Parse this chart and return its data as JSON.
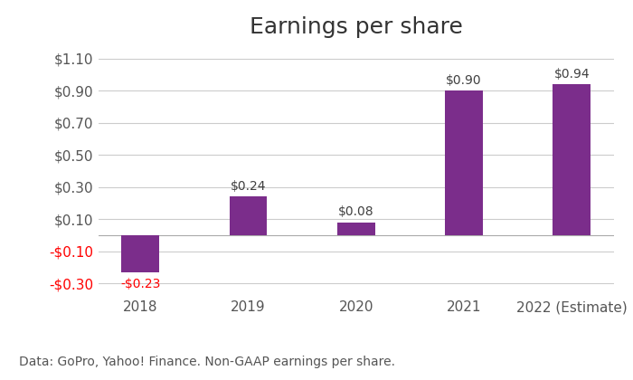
{
  "title": "Earnings per share",
  "categories": [
    "2018",
    "2019",
    "2020",
    "2021",
    "2022 (Estimate)"
  ],
  "values": [
    -0.23,
    0.24,
    0.08,
    0.9,
    0.94
  ],
  "bar_color": "#7B2D8B",
  "label_color_positive": "#404040",
  "label_color_negative": "#FF0000",
  "ylim": [
    -0.38,
    1.18
  ],
  "yticks": [
    -0.3,
    -0.1,
    0.1,
    0.3,
    0.5,
    0.7,
    0.9,
    1.1
  ],
  "ytick_labels": [
    "-$0.30",
    "-$0.10",
    "$0.10",
    "$0.30",
    "$0.50",
    "$0.70",
    "$0.90",
    "$1.10"
  ],
  "bar_labels": [
    "-$0.23",
    "$0.24",
    "$0.08",
    "$0.90",
    "$0.94"
  ],
  "footer": "Data: GoPro, Yahoo! Finance. Non-GAAP earnings per share.",
  "background_color": "#FFFFFF",
  "grid_color": "#CCCCCC",
  "title_fontsize": 18,
  "label_fontsize": 10,
  "tick_fontsize": 11,
  "footer_fontsize": 10,
  "bar_width": 0.35
}
